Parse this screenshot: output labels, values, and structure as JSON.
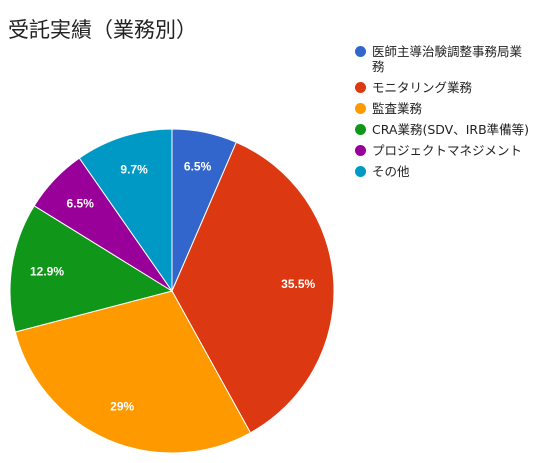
{
  "chart_data": {
    "type": "pie",
    "title": "受託実績（業務別）",
    "legend_position": "right",
    "series": [
      {
        "name": "医師主導治験調整事務局業務",
        "value": 6.5,
        "label": "6.5%",
        "color": "#3366cc"
      },
      {
        "name": "モニタリング業務",
        "value": 35.5,
        "label": "35.5%",
        "color": "#dc3912"
      },
      {
        "name": "監査業務",
        "value": 29,
        "label": "29%",
        "color": "#ff9900"
      },
      {
        "name": "CRA業務(SDV、IRB準備等)",
        "value": 12.9,
        "label": "12.9%",
        "color": "#109618"
      },
      {
        "name": "プロジェクトマネジメント",
        "value": 6.5,
        "label": "6.5%",
        "color": "#990099"
      },
      {
        "name": "その他",
        "value": 9.7,
        "label": "9.7%",
        "color": "#0099c6"
      }
    ]
  }
}
